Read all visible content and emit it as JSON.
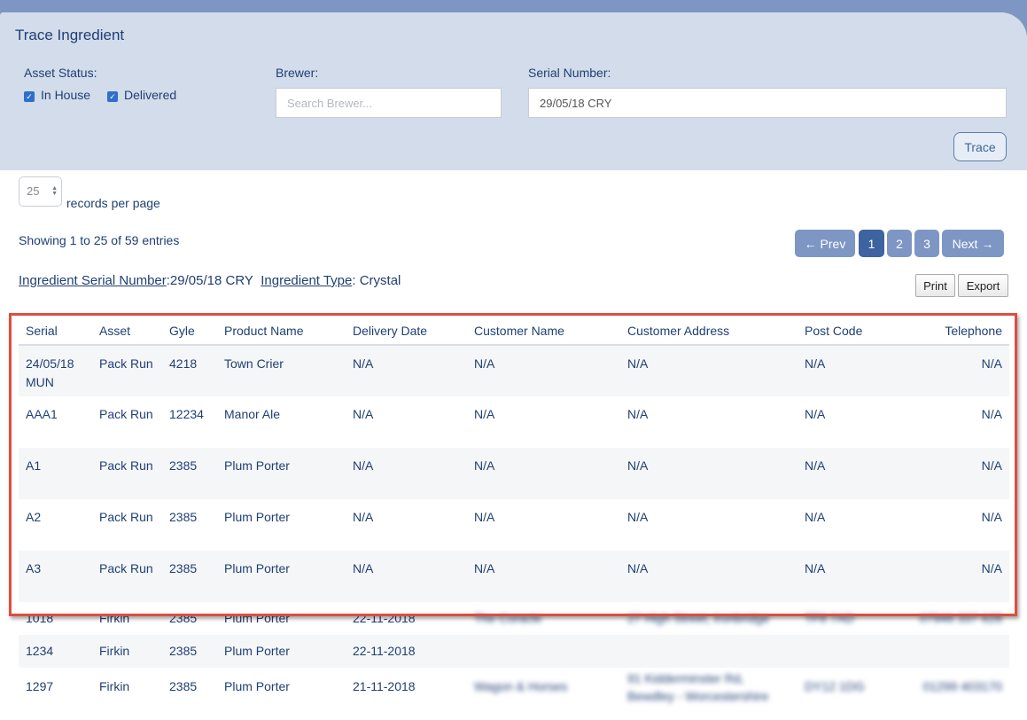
{
  "title": "Trace Ingredient",
  "filters": {
    "asset_status_label": "Asset Status:",
    "in_house_label": "In House",
    "delivered_label": "Delivered",
    "brewer_label": "Brewer:",
    "brewer_placeholder": "Search Brewer...",
    "serial_label": "Serial Number:",
    "serial_value": "29/05/18 CRY",
    "trace_button": "Trace"
  },
  "paging": {
    "per_page_value": "25",
    "per_page_label": "records per page",
    "showing_text": "Showing 1 to 25 of 59 entries",
    "prev_label": "← Prev",
    "next_label": "Next →",
    "pages": [
      "1",
      "2",
      "3"
    ],
    "active_page": "1"
  },
  "ingredient_info": {
    "serial_link": "Ingredient Serial Number",
    "serial_value": ":29/05/18 CRY",
    "type_link": "Ingredient Type",
    "type_value": ": Crystal"
  },
  "actions": {
    "print_label": "Print",
    "export_label": "Export"
  },
  "table": {
    "columns": [
      "Serial",
      "Asset",
      "Gyle",
      "Product Name",
      "Delivery Date",
      "Customer Name",
      "Customer Address",
      "Post Code",
      "Telephone"
    ],
    "rows": [
      [
        "24/05/18 MUN",
        "Pack Run",
        "4218",
        "Town Crier",
        "N/A",
        "N/A",
        "N/A",
        "N/A",
        "N/A"
      ],
      [
        "AAA1",
        "Pack Run",
        "12234",
        "Manor Ale",
        "N/A",
        "N/A",
        "N/A",
        "N/A",
        "N/A"
      ],
      [
        "A1",
        "Pack Run",
        "2385",
        "Plum Porter",
        "N/A",
        "N/A",
        "N/A",
        "N/A",
        "N/A"
      ],
      [
        "A2",
        "Pack Run",
        "2385",
        "Plum Porter",
        "N/A",
        "N/A",
        "N/A",
        "N/A",
        "N/A"
      ],
      [
        "A3",
        "Pack Run",
        "2385",
        "Plum Porter",
        "N/A",
        "N/A",
        "N/A",
        "N/A",
        "N/A"
      ],
      [
        "1018",
        "Firkin",
        "2385",
        "Plum Porter",
        "22-11-2018",
        "The Coracle",
        "27 High Street, Ironbridge",
        "TF8 7AD",
        "07946 337 628"
      ],
      [
        "1234",
        "Firkin",
        "2385",
        "Plum Porter",
        "22-11-2018",
        "",
        "",
        "",
        ""
      ],
      [
        "1297",
        "Firkin",
        "2385",
        "Plum Porter",
        "21-11-2018",
        "Wagon & Horses",
        "91 Kidderminster Rd, Bewdley - Worcestershire",
        "DY12 1DG",
        "01299 403170"
      ]
    ]
  },
  "colors": {
    "header_band": "#7e96c3",
    "filter_bg": "#d2dceb",
    "active_page": "#3d63a0",
    "highlight": "#df4d3f"
  }
}
